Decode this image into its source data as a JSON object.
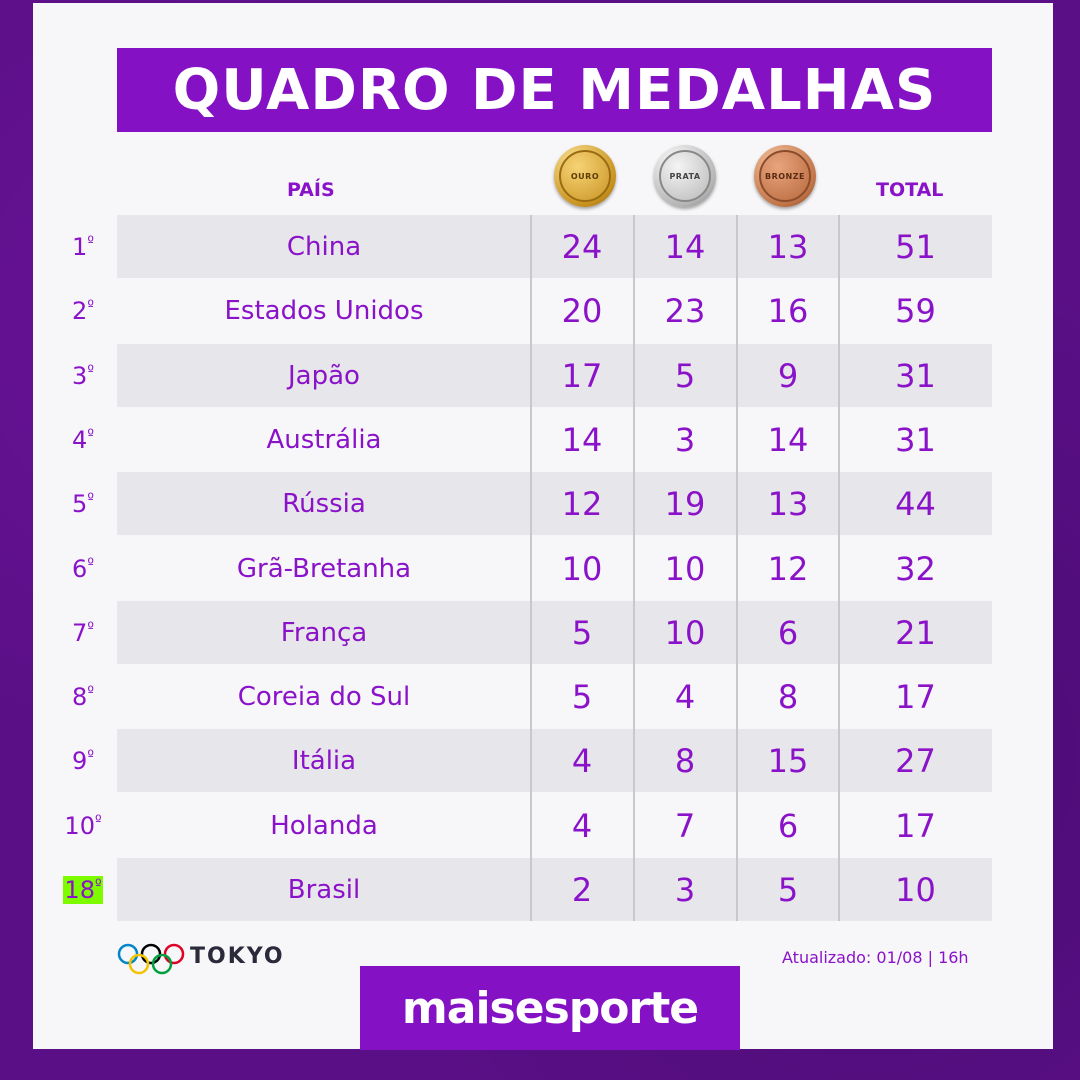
{
  "title": "QUADRO DE MEDALHAS",
  "headers": {
    "country": "PAÍS",
    "gold": "OURO",
    "silver": "PRATA",
    "bronze": "BRONZE",
    "total": "TOTAL"
  },
  "rows": [
    {
      "rank": "1",
      "country": "China",
      "gold": "24",
      "silver": "14",
      "bronze": "13",
      "total": "51"
    },
    {
      "rank": "2",
      "country": "Estados Unidos",
      "gold": "20",
      "silver": "23",
      "bronze": "16",
      "total": "59"
    },
    {
      "rank": "3",
      "country": "Japão",
      "gold": "17",
      "silver": "5",
      "bronze": "9",
      "total": "31"
    },
    {
      "rank": "4",
      "country": "Austrália",
      "gold": "14",
      "silver": "3",
      "bronze": "14",
      "total": "31"
    },
    {
      "rank": "5",
      "country": "Rússia",
      "gold": "12",
      "silver": "19",
      "bronze": "13",
      "total": "44"
    },
    {
      "rank": "6",
      "country": "Grã-Bretanha",
      "gold": "10",
      "silver": "10",
      "bronze": "12",
      "total": "32"
    },
    {
      "rank": "7",
      "country": "França",
      "gold": "5",
      "silver": "10",
      "bronze": "6",
      "total": "21"
    },
    {
      "rank": "8",
      "country": "Coreia do Sul",
      "gold": "5",
      "silver": "4",
      "bronze": "8",
      "total": "17"
    },
    {
      "rank": "9",
      "country": "Itália",
      "gold": "4",
      "silver": "8",
      "bronze": "15",
      "total": "27"
    },
    {
      "rank": "10",
      "country": "Holanda",
      "gold": "4",
      "silver": "7",
      "bronze": "6",
      "total": "17"
    },
    {
      "rank": "18",
      "country": "Brasil",
      "gold": "2",
      "silver": "3",
      "bronze": "5",
      "total": "10"
    }
  ],
  "highlight_color": "#7dfc00",
  "accent_color": "#8412c4",
  "footer": {
    "event": "TOKYO",
    "updated": "Atualizado: 01/08 | 16h",
    "brand": "maisesporte"
  }
}
